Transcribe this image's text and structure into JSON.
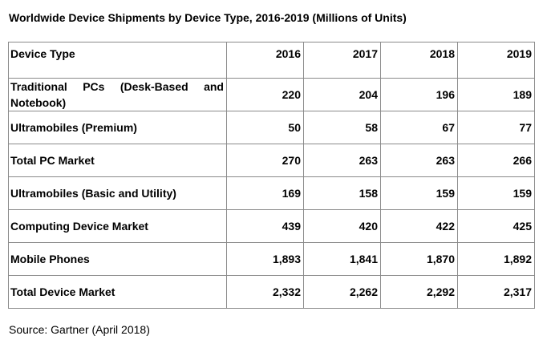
{
  "title": "Worldwide Device Shipments by Device Type, 2016-2019 (Millions of Units)",
  "table": {
    "header": {
      "label": "Device Type",
      "years": [
        "2016",
        "2017",
        "2018",
        "2019"
      ]
    },
    "rows": [
      {
        "label": "Traditional PCs (Desk-Based and Notebook)",
        "values": [
          "220",
          "204",
          "196",
          "189"
        ]
      },
      {
        "label": "Ultramobiles (Premium)",
        "values": [
          "50",
          "58",
          "67",
          "77"
        ]
      },
      {
        "label": "Total PC Market",
        "values": [
          "270",
          "263",
          "263",
          "266"
        ]
      },
      {
        "label": "Ultramobiles (Basic and Utility)",
        "values": [
          "169",
          "158",
          "159",
          "159"
        ]
      },
      {
        "label": "Computing Device Market",
        "values": [
          "439",
          "420",
          "422",
          "425"
        ]
      },
      {
        "label": "Mobile Phones",
        "values": [
          "1,893",
          "1,841",
          "1,870",
          "1,892"
        ]
      },
      {
        "label": "Total Device Market",
        "values": [
          "2,332",
          "2,262",
          "2,292",
          "2,317"
        ]
      }
    ]
  },
  "source": "Source: Gartner (April 2018)"
}
